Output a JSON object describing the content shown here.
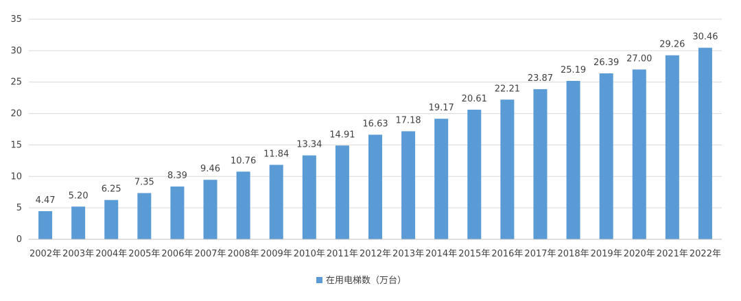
{
  "chart_data": {
    "type": "bar",
    "categories": [
      "2002年",
      "2003年",
      "2004年",
      "2005年",
      "2006年",
      "2007年",
      "2008年",
      "2009年",
      "2010年",
      "2011年",
      "2012年",
      "2013年",
      "2014年",
      "2015年",
      "2016年",
      "2017年",
      "2018年",
      "2019年",
      "2020年",
      "2021年",
      "2022年"
    ],
    "series": [
      {
        "name": "在用电梯数（万台）",
        "values": [
          4.47,
          5.2,
          6.25,
          7.35,
          8.39,
          9.46,
          10.76,
          11.84,
          13.34,
          14.91,
          16.63,
          17.18,
          19.17,
          20.61,
          22.21,
          23.87,
          25.19,
          26.39,
          27.0,
          29.26,
          30.46
        ],
        "value_labels": [
          "4.47",
          "5.20",
          "6.25",
          "7.35",
          "8.39",
          "9.46",
          "10.76",
          "11.84",
          "13.34",
          "14.91",
          "16.63",
          "17.18",
          "19.17",
          "20.61",
          "22.21",
          "23.87",
          "25.19",
          "26.39",
          "27.00",
          "29.26",
          "30.46"
        ],
        "color": "#5b9bd5"
      }
    ],
    "y_ticks": [
      "0",
      "5",
      "10",
      "15",
      "20",
      "25",
      "30",
      "35"
    ],
    "ylim": [
      0,
      35
    ],
    "grid": true,
    "legend_position": "bottom",
    "title": "",
    "xlabel": "",
    "ylabel": ""
  }
}
